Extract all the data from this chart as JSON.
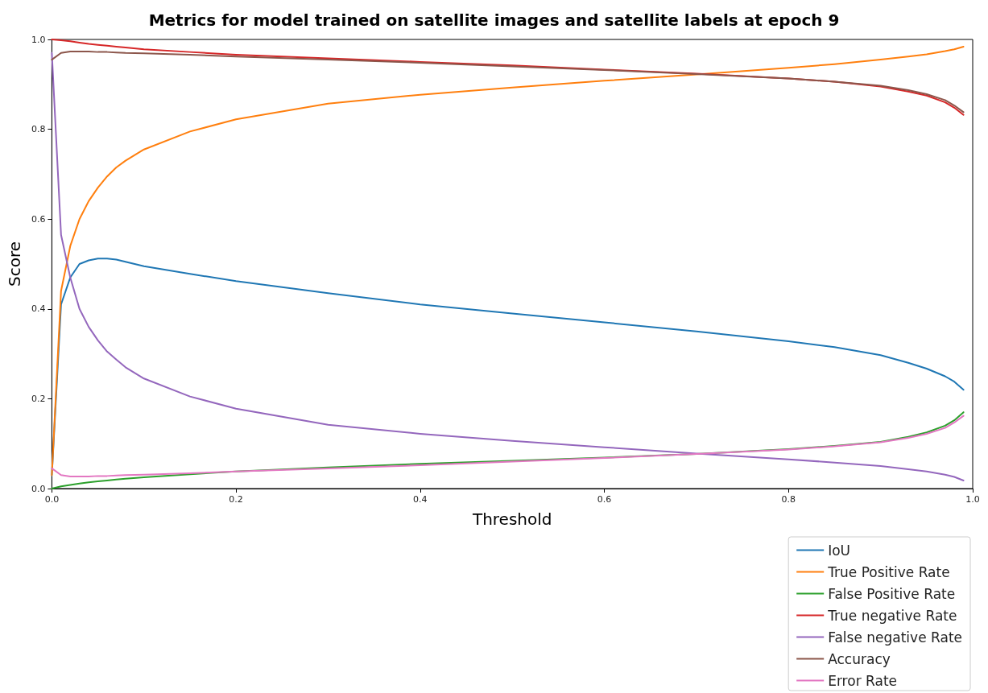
{
  "chart_data": {
    "type": "line",
    "title": "Metrics for model trained on satellite images and satellite labels at epoch 9",
    "xlabel": "Threshold",
    "ylabel": "Score",
    "x": [
      0,
      0.01,
      0.02,
      0.03,
      0.04,
      0.05,
      0.06,
      0.07,
      0.08,
      0.1,
      0.15,
      0.2,
      0.3,
      0.4,
      0.5,
      0.6,
      0.7,
      0.8,
      0.85,
      0.9,
      0.93,
      0.95,
      0.97,
      0.98,
      0.99
    ],
    "series": [
      {
        "name": "IoU",
        "color": "#1f77b4",
        "values": [
          0.03,
          0.41,
          0.47,
          0.5,
          0.508,
          0.512,
          0.512,
          0.51,
          0.505,
          0.495,
          0.478,
          0.462,
          0.435,
          0.41,
          0.39,
          0.37,
          0.35,
          0.328,
          0.315,
          0.297,
          0.28,
          0.267,
          0.25,
          0.238,
          0.22
        ]
      },
      {
        "name": "True Positive Rate",
        "color": "#ff7f0e",
        "values": [
          0.03,
          0.44,
          0.54,
          0.6,
          0.64,
          0.67,
          0.695,
          0.715,
          0.73,
          0.755,
          0.795,
          0.822,
          0.857,
          0.877,
          0.893,
          0.908,
          0.922,
          0.937,
          0.945,
          0.955,
          0.962,
          0.967,
          0.974,
          0.978,
          0.984
        ]
      },
      {
        "name": "False Positive Rate",
        "color": "#2ca02c",
        "values": [
          0,
          0.005,
          0.008,
          0.011,
          0.014,
          0.016,
          0.018,
          0.02,
          0.022,
          0.025,
          0.032,
          0.038,
          0.047,
          0.055,
          0.062,
          0.069,
          0.077,
          0.088,
          0.095,
          0.104,
          0.115,
          0.125,
          0.14,
          0.152,
          0.17
        ]
      },
      {
        "name": "True negative Rate",
        "color": "#d62728",
        "values": [
          1,
          0.998,
          0.996,
          0.993,
          0.99,
          0.988,
          0.986,
          0.984,
          0.982,
          0.978,
          0.972,
          0.966,
          0.958,
          0.95,
          0.942,
          0.933,
          0.924,
          0.913,
          0.906,
          0.895,
          0.884,
          0.875,
          0.86,
          0.848,
          0.832
        ]
      },
      {
        "name": "False negative Rate",
        "color": "#9467bd",
        "values": [
          0.97,
          0.565,
          0.47,
          0.4,
          0.36,
          0.33,
          0.305,
          0.287,
          0.27,
          0.245,
          0.205,
          0.178,
          0.142,
          0.122,
          0.106,
          0.092,
          0.078,
          0.065,
          0.058,
          0.05,
          0.043,
          0.038,
          0.031,
          0.026,
          0.018
        ]
      },
      {
        "name": "Accuracy",
        "color": "#8c564b",
        "values": [
          0.955,
          0.97,
          0.973,
          0.973,
          0.973,
          0.972,
          0.972,
          0.971,
          0.97,
          0.969,
          0.966,
          0.962,
          0.955,
          0.948,
          0.94,
          0.932,
          0.923,
          0.913,
          0.906,
          0.897,
          0.887,
          0.878,
          0.865,
          0.853,
          0.838
        ]
      },
      {
        "name": "Error Rate",
        "color": "#e377c2",
        "values": [
          0.045,
          0.03,
          0.027,
          0.027,
          0.027,
          0.028,
          0.028,
          0.029,
          0.03,
          0.031,
          0.034,
          0.038,
          0.045,
          0.052,
          0.06,
          0.068,
          0.077,
          0.087,
          0.094,
          0.103,
          0.113,
          0.122,
          0.135,
          0.147,
          0.162
        ]
      }
    ],
    "xlim": [
      0,
      1
    ],
    "ylim": [
      0,
      1
    ],
    "xticks": [
      {
        "value": 0,
        "label": "0.0"
      },
      0.2,
      0.4,
      0.6,
      0.8,
      {
        "value": 1,
        "label": "1.0"
      }
    ],
    "yticks": [
      {
        "value": 0,
        "label": "0.0"
      },
      0.2,
      0.4,
      0.6,
      0.8,
      {
        "value": 1,
        "label": "1.0"
      }
    ],
    "grid": false,
    "legend": "bottom right",
    "marker": "none",
    "line_style": "solid"
  }
}
